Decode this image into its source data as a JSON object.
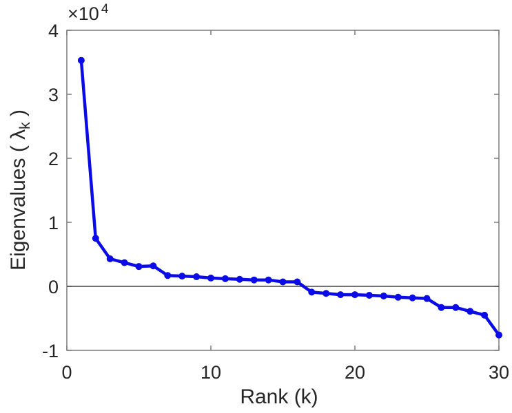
{
  "chart_data": {
    "type": "line",
    "title": "",
    "xlabel": "Rank (k)",
    "ylabel_pre": "Eigenvalues ( λ",
    "ylabel_sub": "k",
    "ylabel_post": " )",
    "y_multiplier_base": "×10",
    "y_multiplier_exp": "4",
    "x": [
      1,
      2,
      3,
      4,
      5,
      6,
      7,
      8,
      9,
      10,
      11,
      12,
      13,
      14,
      15,
      16,
      17,
      18,
      19,
      20,
      21,
      22,
      23,
      24,
      25,
      26,
      27,
      28,
      29,
      30
    ],
    "values": [
      35300,
      7500,
      4300,
      3700,
      3100,
      3200,
      1700,
      1600,
      1500,
      1300,
      1200,
      1100,
      1000,
      1000,
      700,
      700,
      -900,
      -1100,
      -1300,
      -1300,
      -1400,
      -1500,
      -1700,
      -1800,
      -1900,
      -3300,
      -3300,
      -3900,
      -4500,
      -7600
    ],
    "xlim": [
      0,
      30
    ],
    "ylim": [
      -10000,
      40000
    ],
    "xticks": {
      "values": [
        0,
        10,
        20,
        30
      ],
      "labels": [
        "0",
        "10",
        "20",
        "30"
      ]
    },
    "yticks": {
      "values": [
        -10000,
        0,
        10000,
        20000,
        30000,
        40000
      ],
      "labels": [
        "-1",
        "0",
        "1",
        "2",
        "3",
        "4"
      ]
    },
    "grid": false,
    "legend": "none",
    "zero_line": true,
    "marker": "filled-circle",
    "colors": {
      "line": "#0b0be8",
      "axis": "#7b7b7b",
      "zero_line": "#444444",
      "text": "#262626",
      "background": "#ffffff"
    }
  }
}
